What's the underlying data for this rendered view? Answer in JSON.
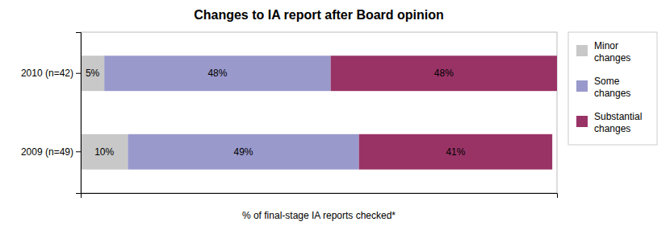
{
  "chart_data": {
    "type": "bar",
    "orientation": "horizontal",
    "stacked": true,
    "title": "Changes to IA report after Board opinion",
    "xlabel": "% of final-stage IA reports checked*",
    "categories": [
      "2010 (n=42)",
      "2009 (n=49)"
    ],
    "series": [
      {
        "name": "Minor\nchanges",
        "color": "#c8c8c8",
        "values": [
          5,
          10
        ],
        "value_labels": [
          "5%",
          "10%"
        ]
      },
      {
        "name": "Some\nchanges",
        "color": "#9999cc",
        "values": [
          48,
          49
        ],
        "value_labels": [
          "48%",
          "49%"
        ]
      },
      {
        "name": "Substantial\nchanges",
        "color": "#993366",
        "values": [
          48,
          41
        ],
        "value_labels": [
          "48%",
          "41%"
        ]
      }
    ],
    "xlim": [
      0,
      101
    ],
    "xticks": [],
    "grid": false,
    "tick_labels": "y",
    "data_labels": true,
    "legend": "right"
  }
}
